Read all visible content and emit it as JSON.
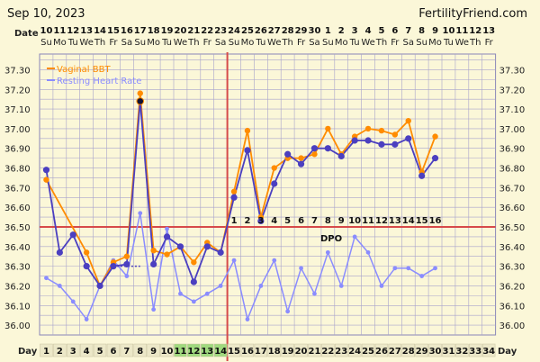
{
  "header": {
    "date": "Sep 10, 2023",
    "site": "FertilityFriend.com",
    "date_row_label": "Date",
    "day_row_label": "Day",
    "dpo_label": "DPO"
  },
  "colors": {
    "bbt": "#ff8c00",
    "bbt_marker_outer": "#ffb340",
    "hr_temp_line": "#4b3fc0",
    "heart_rate": "#8a8cff",
    "coverline": "#d64a4a",
    "ovulation_line": "#d64a4a",
    "grid": "#a8a3cc",
    "background": "#fbf7d8",
    "fertile_day_bg": "#a0d97e"
  },
  "chart_data": {
    "type": "line",
    "title": "",
    "x_dates": [
      "10",
      "11",
      "12",
      "13",
      "14",
      "15",
      "16",
      "17",
      "18",
      "19",
      "20",
      "21",
      "22",
      "23",
      "24",
      "25",
      "26",
      "27",
      "28",
      "29",
      "30",
      "1",
      "2",
      "3",
      "4",
      "5",
      "6",
      "7",
      "8",
      "9",
      "10",
      "11",
      "12",
      "13"
    ],
    "x_weekdays": [
      "Su",
      "Mo",
      "Tu",
      "We",
      "Th",
      "Fr",
      "Sa",
      "Su",
      "Mo",
      "Tu",
      "We",
      "Th",
      "Fr",
      "Sa",
      "Su",
      "Mo",
      "Tu",
      "We",
      "Th",
      "Fr",
      "Sa",
      "Su",
      "Mo",
      "Tu",
      "We",
      "Th",
      "Fr",
      "Sa",
      "Su",
      "Mo",
      "Tu",
      "We",
      "Th",
      "Fr"
    ],
    "cycle_days": [
      1,
      2,
      3,
      4,
      5,
      6,
      7,
      8,
      9,
      10,
      11,
      12,
      13,
      14,
      15,
      16,
      17,
      18,
      19,
      20,
      21,
      22,
      23,
      24,
      25,
      26,
      27,
      28,
      29,
      30,
      31,
      32,
      33,
      34
    ],
    "fertile_days": [
      11,
      12,
      13,
      14
    ],
    "dpo": [
      "",
      "",
      "",
      "",
      "",
      "",
      "",
      "",
      "",
      "",
      "",
      "",
      "",
      "",
      "1",
      "2",
      "3",
      "4",
      "5",
      "6",
      "7",
      "8",
      "9",
      "10",
      "11",
      "12",
      "13",
      "14",
      "15",
      "16",
      "",
      "",
      "",
      ""
    ],
    "yticks": [
      "36.00",
      "36.10",
      "36.20",
      "36.30",
      "36.40",
      "36.50",
      "36.60",
      "36.70",
      "36.80",
      "36.90",
      "37.00",
      "37.10",
      "37.20",
      "37.30"
    ],
    "ylim": [
      35.95,
      37.38
    ],
    "coverline": 36.5,
    "ovulation_after_day": 14,
    "legend_position": "top-left",
    "series": [
      {
        "name": "Vaginal BBT",
        "values": [
          36.74,
          null,
          null,
          36.37,
          36.2,
          36.32,
          36.35,
          37.18,
          36.38,
          36.36,
          36.4,
          36.32,
          36.42,
          36.37,
          36.68,
          36.99,
          36.55,
          36.8,
          36.85,
          36.85,
          36.87,
          37.0,
          36.87,
          36.96,
          37.0,
          36.99,
          36.97,
          37.04,
          36.78,
          36.96,
          null,
          null,
          null,
          null
        ]
      },
      {
        "name": "",
        "values": [
          36.79,
          36.37,
          36.46,
          36.3,
          36.2,
          36.3,
          36.31,
          37.14,
          36.31,
          36.45,
          36.4,
          36.22,
          36.4,
          36.37,
          36.65,
          36.89,
          36.53,
          36.72,
          36.87,
          36.82,
          36.9,
          36.9,
          36.86,
          36.94,
          36.94,
          36.92,
          36.92,
          36.95,
          36.76,
          36.85,
          null,
          null,
          null,
          null
        ]
      },
      {
        "name": "Resting Heart Rate",
        "values": [
          36.24,
          36.2,
          36.12,
          36.03,
          36.2,
          36.33,
          36.25,
          36.57,
          36.08,
          36.49,
          36.16,
          36.12,
          36.16,
          36.2,
          36.33,
          36.03,
          36.2,
          36.33,
          36.07,
          36.29,
          36.16,
          36.37,
          36.2,
          36.45,
          36.37,
          36.2,
          36.29,
          36.29,
          36.25,
          36.29,
          null,
          null,
          null,
          null
        ]
      }
    ]
  }
}
